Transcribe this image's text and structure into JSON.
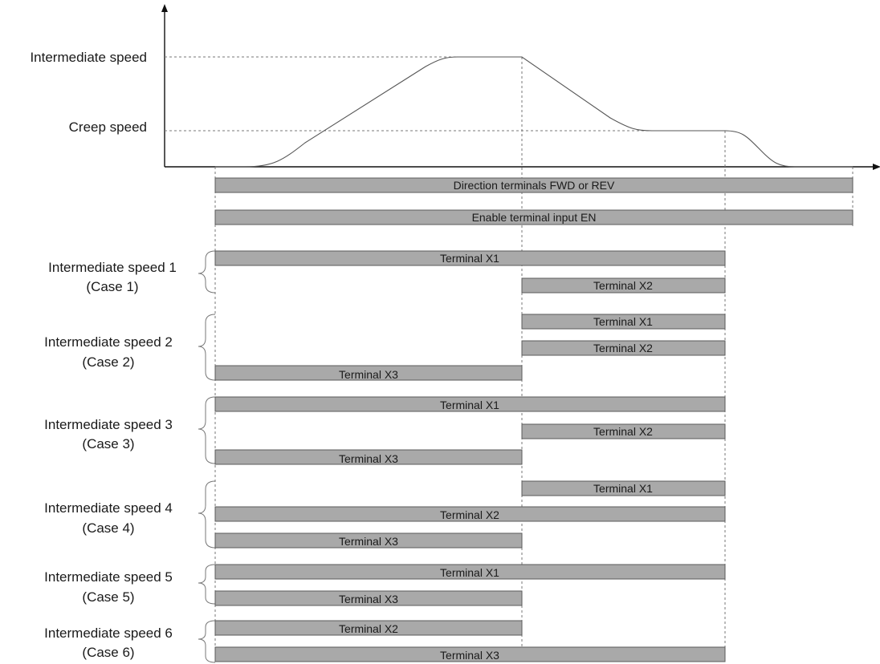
{
  "speed_labels": {
    "intermediate": "Intermediate speed",
    "creep": "Creep speed"
  },
  "bars": {
    "direction": "Direction terminals FWD or REV",
    "enable": "Enable terminal input EN"
  },
  "cases": [
    {
      "title": "Intermediate speed 1",
      "subtitle": "(Case 1)",
      "rows": [
        {
          "label": "Terminal X1",
          "span": "t1-t3"
        },
        {
          "label": "Terminal X2",
          "span": "t2-t3"
        }
      ]
    },
    {
      "title": "Intermediate speed 2",
      "subtitle": "(Case 2)",
      "rows": [
        {
          "label": "Terminal X1",
          "span": "t2-t3"
        },
        {
          "label": "Terminal X2",
          "span": "t2-t3"
        },
        {
          "label": "Terminal X3",
          "span": "t1-t2"
        }
      ]
    },
    {
      "title": "Intermediate speed 3",
      "subtitle": "(Case 3)",
      "rows": [
        {
          "label": "Terminal X1",
          "span": "t1-t3"
        },
        {
          "label": "Terminal X2",
          "span": "t2-t3"
        },
        {
          "label": "Terminal X3",
          "span": "t1-t2"
        }
      ]
    },
    {
      "title": "Intermediate speed 4",
      "subtitle": "(Case 4)",
      "rows": [
        {
          "label": "Terminal X1",
          "span": "t2-t3"
        },
        {
          "label": "Terminal X2",
          "span": "t1-t3"
        },
        {
          "label": "Terminal X3",
          "span": "t1-t2"
        }
      ]
    },
    {
      "title": "Intermediate speed 5",
      "subtitle": "(Case 5)",
      "rows": [
        {
          "label": "Terminal X1",
          "span": "t1-t3"
        },
        {
          "label": "Terminal X3",
          "span": "t1-t2"
        }
      ]
    },
    {
      "title": "Intermediate speed 6",
      "subtitle": "(Case 6)",
      "rows": [
        {
          "label": "Terminal X2",
          "span": "t1-t2"
        },
        {
          "label": "Terminal X3",
          "span": "t1-t3"
        }
      ]
    }
  ]
}
